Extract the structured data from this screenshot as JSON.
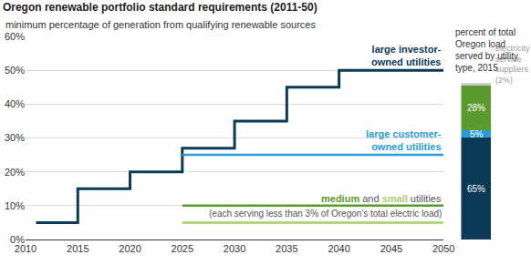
{
  "chart_data": [
    {
      "type": "line",
      "title": "Oregon renewable portfolio standard requirements (2011-50)",
      "subtitle": "minimum percentage of generation from qualifying renewable sources",
      "xlim": [
        2010,
        2050
      ],
      "xticks": [
        2010,
        2015,
        2020,
        2025,
        2030,
        2035,
        2040,
        2045,
        2050
      ],
      "ylim": [
        0,
        60
      ],
      "yticks": [
        {
          "value": 0,
          "label": "0%"
        },
        {
          "value": 10,
          "label": "10%"
        },
        {
          "value": 20,
          "label": "20%"
        },
        {
          "value": 30,
          "label": "30%"
        },
        {
          "value": 40,
          "label": "40%"
        },
        {
          "value": 50,
          "label": "50%"
        },
        {
          "value": 60,
          "label": "60%"
        }
      ],
      "grid": true,
      "line_style": "step",
      "series": [
        {
          "color": "#0b3a56",
          "x": [
            2011,
            2015,
            2020,
            2025,
            2030,
            2035,
            2040,
            2050
          ],
          "values": [
            5,
            15,
            20,
            27,
            35,
            45,
            50,
            50
          ]
        },
        {
          "color": "#2a9bd8",
          "x": [
            2025,
            2050
          ],
          "values": [
            25,
            25
          ]
        },
        {
          "color": "#5b9a2e",
          "x": [
            2025,
            2050
          ],
          "values": [
            10,
            10
          ]
        },
        {
          "color": "#a6ce6a",
          "x": [
            2025,
            2050
          ],
          "values": [
            5,
            5
          ]
        }
      ],
      "annotations": [
        {
          "lines": [
            [
              {
                "text": "large investor-",
                "color": "#0b3a56"
              }
            ],
            [
              {
                "text": "owned utilities",
                "color": "#0b3a56"
              }
            ]
          ]
        },
        {
          "lines": [
            [
              {
                "text": "large customer-",
                "color": "#2a9bd8"
              }
            ],
            [
              {
                "text": "owned utilities",
                "color": "#2a9bd8"
              }
            ]
          ]
        },
        {
          "lines": [
            [
              {
                "text": "medium",
                "color": "#5b9a2e"
              },
              {
                "text": " and "
              },
              {
                "text": "small",
                "color": "#a6ce6a"
              },
              {
                "text": " utilities"
              }
            ]
          ]
        },
        {
          "lines": [
            [
              {
                "text": "(each serving less than 3% of Oregon's total electric load)"
              }
            ]
          ]
        }
      ]
    },
    {
      "type": "bar",
      "title": "percent of total Oregon load served by utility type, 2015",
      "stacked": true,
      "data_labels": true,
      "tick_labels": false,
      "categories": [
        null
      ],
      "ylim": [
        0,
        100
      ],
      "series": [
        {
          "color": "#0b3a56",
          "values": [
            65
          ],
          "value_labels": [
            "65%"
          ]
        },
        {
          "color": "#2a9bd8",
          "values": [
            5
          ],
          "value_labels": [
            "5%"
          ]
        },
        {
          "color": "#5b9a2e",
          "values": [
            28
          ],
          "value_labels": [
            "28%"
          ]
        },
        {
          "name": "electricity service suppliers (2%)",
          "color": "#c8c8c8",
          "values": [
            2
          ]
        }
      ]
    }
  ]
}
